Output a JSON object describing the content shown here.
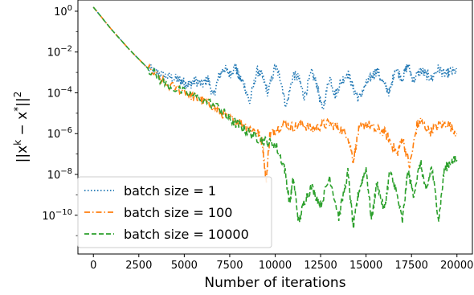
{
  "chart_data": {
    "type": "line",
    "title": "",
    "xlabel": "Number of iterations",
    "ylabel": "||x^k − x*||²",
    "ylabel_parts": {
      "base": "||x",
      "sup1": "k",
      "mid": " − x",
      "sup2": "*",
      "end": "||",
      "sup3": "2"
    },
    "xlim": [
      -850,
      20850
    ],
    "ylim_log10": [
      -11.9,
      0.55
    ],
    "y_scale": "log",
    "x_ticks": [
      0,
      2500,
      5000,
      7500,
      10000,
      12500,
      15000,
      17500,
      20000
    ],
    "x_tick_labels": [
      "0",
      "2500",
      "5000",
      "7500",
      "10000",
      "12500",
      "15000",
      "17500",
      "20000"
    ],
    "y_ticks_log10": [
      0,
      -2,
      -4,
      -6,
      -8,
      -10
    ],
    "y_tick_labels": [
      {
        "base": "10",
        "exp": "0"
      },
      {
        "base": "10",
        "exp": "−2"
      },
      {
        "base": "10",
        "exp": "−4"
      },
      {
        "base": "10",
        "exp": "−6"
      },
      {
        "base": "10",
        "exp": "−8"
      },
      {
        "base": "10",
        "exp": "−10"
      }
    ],
    "grid": false,
    "legend_position": "lower-left",
    "series": [
      {
        "name": "batch size = 1",
        "color": "#1f77b4",
        "dash": "dotted",
        "x": [
          0,
          1000,
          2000,
          3000,
          3500,
          4000,
          4500,
          4800,
          5000,
          5300,
          5600,
          6000,
          6300,
          6600,
          6900,
          7200,
          7500,
          7800,
          8000,
          8300,
          8600,
          9000,
          9300,
          9600,
          10000,
          10300,
          10600,
          11000,
          11300,
          11600,
          12000,
          12300,
          12600,
          13000,
          13300,
          13600,
          14000,
          14300,
          14600,
          15000,
          15300,
          15600,
          16000,
          16300,
          16600,
          17000,
          17300,
          17600,
          18000,
          18300,
          18600,
          19000,
          19300,
          19600,
          20000
        ],
        "log10": [
          0.2,
          -0.9,
          -1.9,
          -2.8,
          -3.0,
          -3.2,
          -3.3,
          -3.4,
          -3.5,
          -3.6,
          -3.4,
          -3.6,
          -3.3,
          -4.2,
          -3.2,
          -2.8,
          -3.1,
          -2.7,
          -3.2,
          -3.6,
          -4.5,
          -2.9,
          -3.2,
          -4.0,
          -2.7,
          -3.3,
          -4.7,
          -3.1,
          -3.3,
          -4.2,
          -3.0,
          -3.6,
          -4.9,
          -3.2,
          -4.1,
          -3.5,
          -3.0,
          -3.8,
          -4.3,
          -3.6,
          -3.2,
          -2.9,
          -3.6,
          -4.0,
          -2.8,
          -3.3,
          -2.6,
          -3.4,
          -2.9,
          -3.1,
          -3.3,
          -2.8,
          -3.1,
          -3.0,
          -2.9
        ]
      },
      {
        "name": "batch size = 100",
        "color": "#ff7f0e",
        "dash": "dashdot",
        "x": [
          0,
          1000,
          2000,
          3000,
          4000,
          5000,
          5500,
          6000,
          6500,
          7000,
          7500,
          8000,
          8500,
          9000,
          9300,
          9500,
          9700,
          10000,
          10500,
          11000,
          11500,
          12000,
          12500,
          13000,
          13500,
          14000,
          14300,
          14600,
          15000,
          15500,
          16000,
          16400,
          16700,
          17000,
          17400,
          17800,
          18000,
          18500,
          19000,
          19500,
          20000
        ],
        "log10": [
          0.2,
          -0.9,
          -1.9,
          -2.8,
          -3.6,
          -3.9,
          -4.2,
          -4.4,
          -4.6,
          -5.0,
          -5.3,
          -5.4,
          -5.7,
          -5.9,
          -6.4,
          -8.4,
          -6.1,
          -5.8,
          -5.5,
          -5.7,
          -5.5,
          -5.8,
          -5.6,
          -5.5,
          -5.7,
          -6.1,
          -7.3,
          -5.8,
          -5.5,
          -5.8,
          -5.9,
          -6.5,
          -7.0,
          -6.2,
          -7.6,
          -5.6,
          -5.4,
          -5.9,
          -5.6,
          -5.5,
          -6.0
        ]
      },
      {
        "name": "batch size = 10000",
        "color": "#2ca02c",
        "dash": "dashed",
        "x": [
          0,
          1000,
          2000,
          3000,
          4000,
          5000,
          6000,
          7000,
          7500,
          8000,
          8500,
          9000,
          9500,
          10000,
          10500,
          10800,
          11000,
          11300,
          11600,
          12000,
          12500,
          13000,
          13500,
          14000,
          14300,
          14600,
          15000,
          15300,
          15600,
          16000,
          16300,
          16600,
          17000,
          17300,
          17600,
          18000,
          18300,
          18600,
          19000,
          19300,
          19600,
          20000
        ],
        "log10": [
          0.2,
          -0.9,
          -1.9,
          -2.8,
          -3.6,
          -4.0,
          -4.3,
          -4.8,
          -5.3,
          -5.6,
          -5.9,
          -6.2,
          -6.4,
          -6.5,
          -7.6,
          -9.4,
          -8.2,
          -10.4,
          -9.3,
          -8.6,
          -9.5,
          -8.1,
          -10.1,
          -7.9,
          -10.6,
          -8.8,
          -7.7,
          -10.2,
          -8.4,
          -9.8,
          -7.9,
          -8.6,
          -10.3,
          -7.8,
          -9.0,
          -7.4,
          -8.9,
          -7.6,
          -10.2,
          -7.8,
          -7.4,
          -7.3
        ]
      }
    ]
  }
}
